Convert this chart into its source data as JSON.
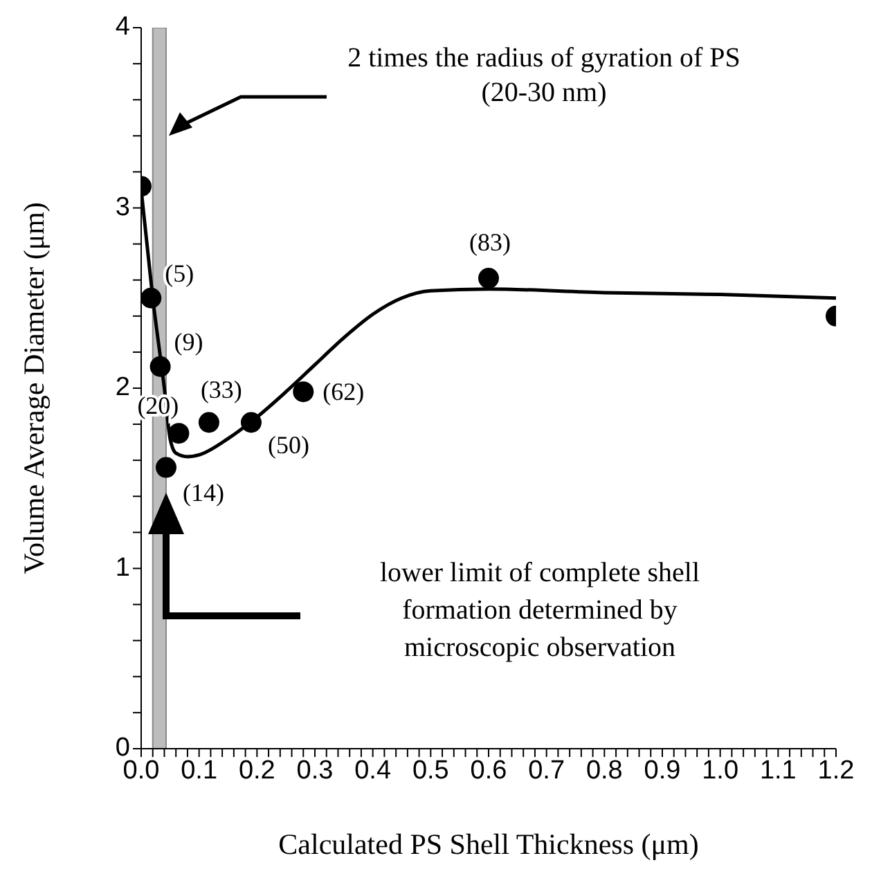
{
  "chart_data": {
    "type": "scatter",
    "xlabel": "Calculated PS Shell Thickness (μm)",
    "ylabel": "Volume Average Diameter (μm)",
    "xlim": [
      0,
      1.2
    ],
    "xticks": [
      {
        "value": 0,
        "label": "0.0"
      },
      {
        "value": 0.02,
        "label": null
      },
      {
        "value": 0.04,
        "label": null
      },
      {
        "value": 0.06,
        "label": null
      },
      {
        "value": 0.08,
        "label": null
      },
      0.1,
      {
        "value": 0.12,
        "label": null
      },
      {
        "value": 0.14,
        "label": null
      },
      {
        "value": 0.16,
        "label": null
      },
      {
        "value": 0.18,
        "label": null
      },
      0.2,
      {
        "value": 0.22,
        "label": null
      },
      {
        "value": 0.24,
        "label": null
      },
      {
        "value": 0.26,
        "label": null
      },
      {
        "value": 0.28,
        "label": null
      },
      0.3,
      {
        "value": 0.32,
        "label": null
      },
      {
        "value": 0.34,
        "label": null
      },
      {
        "value": 0.36,
        "label": null
      },
      {
        "value": 0.38,
        "label": null
      },
      0.4,
      {
        "value": 0.42,
        "label": null
      },
      {
        "value": 0.44,
        "label": null
      },
      {
        "value": 0.46,
        "label": null
      },
      {
        "value": 0.48,
        "label": null
      },
      0.5,
      {
        "value": 0.52,
        "label": null
      },
      {
        "value": 0.54,
        "label": null
      },
      {
        "value": 0.56,
        "label": null
      },
      {
        "value": 0.58,
        "label": null
      },
      0.6,
      {
        "value": 0.62,
        "label": null
      },
      {
        "value": 0.64,
        "label": null
      },
      {
        "value": 0.66,
        "label": null
      },
      {
        "value": 0.68,
        "label": null
      },
      0.7,
      {
        "value": 0.72,
        "label": null
      },
      {
        "value": 0.74,
        "label": null
      },
      {
        "value": 0.76,
        "label": null
      },
      {
        "value": 0.78,
        "label": null
      },
      0.8,
      {
        "value": 0.82,
        "label": null
      },
      {
        "value": 0.84,
        "label": null
      },
      {
        "value": 0.86,
        "label": null
      },
      {
        "value": 0.88,
        "label": null
      },
      0.9,
      {
        "value": 0.92,
        "label": null
      },
      {
        "value": 0.94,
        "label": null
      },
      {
        "value": 0.96,
        "label": null
      },
      {
        "value": 0.98,
        "label": null
      },
      {
        "value": 1,
        "label": "1.0"
      },
      {
        "value": 1.02,
        "label": null
      },
      {
        "value": 1.04,
        "label": null
      },
      {
        "value": 1.06,
        "label": null
      },
      {
        "value": 1.08,
        "label": null
      },
      1.1,
      {
        "value": 1.12,
        "label": null
      },
      {
        "value": 1.14,
        "label": null
      },
      {
        "value": 1.16,
        "label": null
      },
      {
        "value": 1.18,
        "label": null
      },
      1.2
    ],
    "ylim": [
      0,
      4
    ],
    "yticks": [
      0,
      {
        "value": 0.2,
        "label": null
      },
      {
        "value": 0.4,
        "label": null
      },
      {
        "value": 0.6,
        "label": null
      },
      {
        "value": 0.8,
        "label": null
      },
      1,
      {
        "value": 1.2,
        "label": null
      },
      {
        "value": 1.4,
        "label": null
      },
      {
        "value": 1.6,
        "label": null
      },
      {
        "value": 1.8,
        "label": null
      },
      2,
      {
        "value": 2.2,
        "label": null
      },
      {
        "value": 2.4,
        "label": null
      },
      {
        "value": 2.6,
        "label": null
      },
      {
        "value": 2.8,
        "label": null
      },
      3,
      {
        "value": 3.2,
        "label": null
      },
      {
        "value": 3.4,
        "label": null
      },
      {
        "value": 3.6,
        "label": null
      },
      {
        "value": 3.8,
        "label": null
      },
      4
    ],
    "series": [
      {
        "color": "#000000",
        "marker": "circle",
        "x": [
          0,
          0.017,
          0.033,
          0.043,
          0.065,
          0.117,
          0.19,
          0.28,
          0.6,
          1.2
        ],
        "values": [
          3.12,
          2.5,
          2.12,
          1.56,
          1.75,
          1.81,
          1.81,
          1.98,
          2.61,
          2.4
        ]
      },
      {
        "type": "line",
        "color": "#000000",
        "marker": "none",
        "line_style": "solid",
        "x": [
          0,
          0.02,
          0.04,
          0.05,
          0.06,
          0.08,
          0.1,
          0.15,
          0.2,
          0.25,
          0.3,
          0.35,
          0.4,
          0.45,
          0.5,
          0.6,
          0.8,
          1,
          1.2
        ],
        "values": [
          3.1,
          2.5,
          2.0,
          1.72,
          1.64,
          1.62,
          1.63,
          1.72,
          1.84,
          1.98,
          2.13,
          2.28,
          2.41,
          2.5,
          2.54,
          2.55,
          2.53,
          2.52,
          2.5
        ]
      }
    ],
    "bands": [
      {
        "axis": "x",
        "from": 0.02,
        "to": 0.043,
        "color": "#bdbdbd",
        "label": "2 times the radius of gyration of PS (20-30 nm)"
      }
    ],
    "annotations": [
      {
        "text": "(5)",
        "x": 0.017,
        "y": 2.5
      },
      {
        "text": "(9)",
        "x": 0.033,
        "y": 2.12
      },
      {
        "text": "(14)",
        "x": 0.043,
        "y": 1.56
      },
      {
        "text": "(20)",
        "x": 0.065,
        "y": 1.75
      },
      {
        "text": "(33)",
        "x": 0.117,
        "y": 1.81
      },
      {
        "text": "(50)",
        "x": 0.19,
        "y": 1.81
      },
      {
        "text": "(62)",
        "x": 0.28,
        "y": 1.98
      },
      {
        "text": "(83)",
        "x": 0.6,
        "y": 2.61
      },
      "lower limit of complete shell formation determined by microscopic observation"
    ]
  }
}
